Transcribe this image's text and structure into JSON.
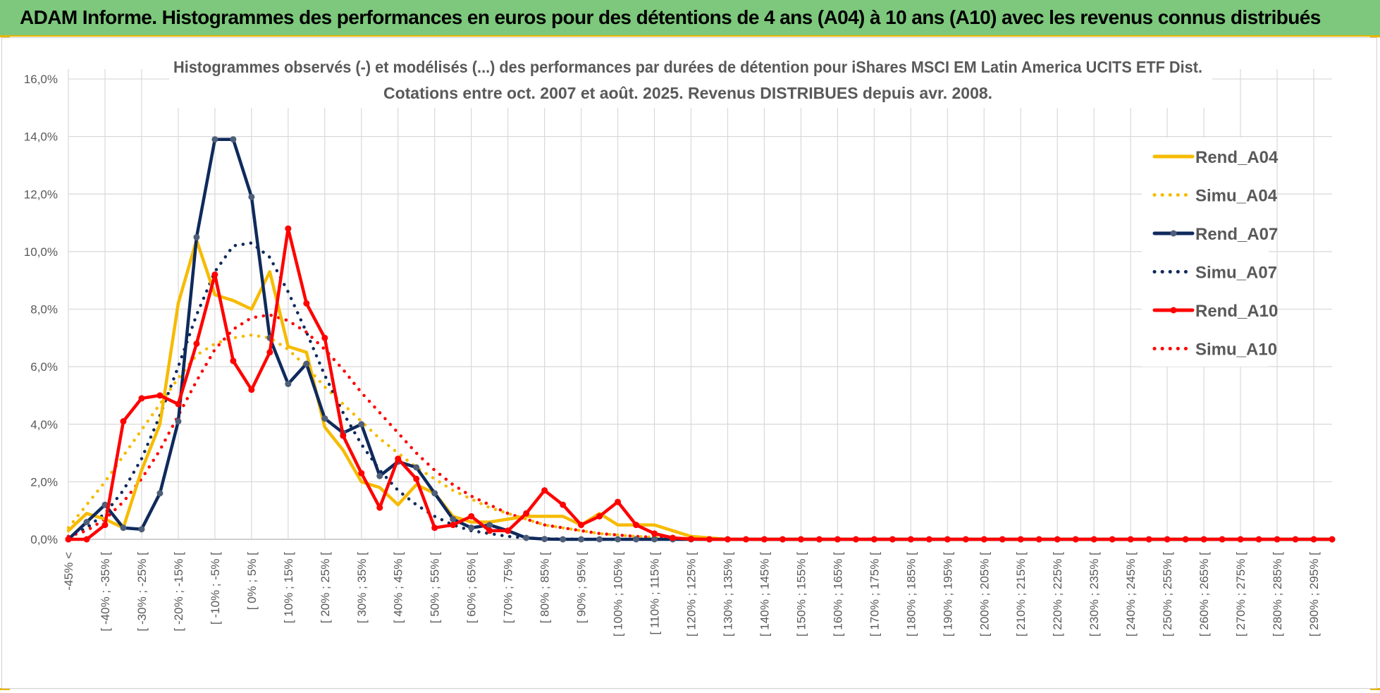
{
  "header": {
    "title": "ADAM Informe. Histogrammes des performances en euros pour des détentions de 4 ans (A04) à 10 ans (A10) avec les revenus connus distribués"
  },
  "colors": {
    "banner": "#7dc87c",
    "banner_border": "#e9b400",
    "A04": "#f6bb00",
    "A07": "#0f2a5c",
    "A10": "#ff0000",
    "A07_marker": "#4f5f7a",
    "A10_marker": "#ff0000",
    "grid": "#d9d9d9",
    "text": "#595959"
  },
  "chart_data": {
    "type": "line",
    "title_lines": [
      "Histogrammes observés (-) et modélisés (...) des performances par durées de détention pour iShares MSCI EM Latin America UCITS ETF Dist.",
      "Cotations entre oct. 2007 et août. 2025. Revenus DISTRIBUES depuis avr. 2008."
    ],
    "xlabel": "",
    "ylabel": "",
    "ylim": [
      0,
      0.16
    ],
    "yticks": [
      "0,0%",
      "2,0%",
      "4,0%",
      "6,0%",
      "8,0%",
      "10,0%",
      "12,0%",
      "14,0%",
      "16,0%"
    ],
    "grid": true,
    "legend_position": "top-right",
    "category_count": 70,
    "tick_labels": [
      "-45% <",
      "[ -40% ; -35% [",
      "[ -30% ; -25% [",
      "[ -20% ; -15% [",
      "[ -10% ; -5% [",
      "[ 0% ; 5% [",
      "[ 10% ; 15% [",
      "[ 20% ; 25% [",
      "[ 30% ; 35% [",
      "[ 40% ; 45% [",
      "[ 50% ; 55% [",
      "[ 60% ; 65% [",
      "[ 70% ; 75% [",
      "[ 80% ; 85% [",
      "[ 90% ; 95% [",
      "[ 100% ; 105% [",
      "[ 110% ; 115% [",
      "[ 120% ; 125% [",
      "[ 130% ; 135% [",
      "[ 140% ; 145% [",
      "[ 150% ; 155% [",
      "[ 160% ; 165% [",
      "[ 170% ; 175% [",
      "[ 180% ; 185% [",
      "[ 190% ; 195% [",
      "[ 200% ; 205% [",
      "[ 210% ; 215% [",
      "[ 220% ; 225% [",
      "[ 230% ; 235% [",
      "[ 240% ; 245% [",
      "[ 250% ; 255% [",
      "[ 260% ; 265% [",
      "[ 270% ; 275% [",
      "[ 280% ; 285% [",
      "[ 290% ; 295% ["
    ],
    "series": [
      {
        "name": "Rend_A04",
        "style": "solid",
        "color": "#f6bb00",
        "markers": false,
        "values": [
          0.003,
          0.009,
          0.007,
          0.004,
          0.024,
          0.04,
          0.082,
          0.104,
          0.085,
          0.083,
          0.08,
          0.093,
          0.067,
          0.065,
          0.039,
          0.031,
          0.02,
          0.018,
          0.012,
          0.019,
          0.016,
          0.008,
          0.006,
          0.006,
          0.007,
          0.008,
          0.008,
          0.008,
          0.005,
          0.009,
          0.005,
          0.005,
          0.005,
          0.003,
          0.001,
          0.0005,
          0.0,
          0.0
        ]
      },
      {
        "name": "Simu_A04",
        "style": "dotted",
        "color": "#f6bb00",
        "markers": false,
        "values": [
          0.004,
          0.012,
          0.02,
          0.029,
          0.038,
          0.047,
          0.056,
          0.064,
          0.068,
          0.07,
          0.071,
          0.07,
          0.066,
          0.06,
          0.053,
          0.047,
          0.041,
          0.035,
          0.03,
          0.025,
          0.021,
          0.017,
          0.014,
          0.011,
          0.009,
          0.007,
          0.005,
          0.004,
          0.003,
          0.002,
          0.0015,
          0.001,
          0.0007,
          0.0004,
          0.0002,
          0.0001,
          0.0,
          0.0
        ]
      },
      {
        "name": "Rend_A07",
        "style": "solid",
        "color": "#0f2a5c",
        "markers": true,
        "values": [
          0.0,
          0.006,
          0.012,
          0.004,
          0.0035,
          0.016,
          0.041,
          0.105,
          0.139,
          0.139,
          0.119,
          0.07,
          0.054,
          0.061,
          0.042,
          0.037,
          0.04,
          0.022,
          0.027,
          0.025,
          0.016,
          0.007,
          0.004,
          0.005,
          0.003,
          0.0005,
          0.0001,
          0.0,
          0.0,
          0.0,
          0.0,
          0.0,
          0.0,
          0.0,
          0.0,
          0.0,
          0.0,
          0.0
        ]
      },
      {
        "name": "Simu_A07",
        "style": "dotted",
        "color": "#0f2a5c",
        "markers": false,
        "values": [
          0.001,
          0.004,
          0.009,
          0.017,
          0.028,
          0.043,
          0.06,
          0.078,
          0.093,
          0.102,
          0.103,
          0.098,
          0.086,
          0.072,
          0.057,
          0.044,
          0.033,
          0.024,
          0.017,
          0.012,
          0.008,
          0.005,
          0.003,
          0.002,
          0.001,
          0.0005,
          0.0002,
          0.0001,
          0.0,
          0.0,
          0.0,
          0.0,
          0.0,
          0.0,
          0.0,
          0.0,
          0.0,
          0.0
        ]
      },
      {
        "name": "Rend_A10",
        "style": "solid",
        "color": "#ff0000",
        "markers": true,
        "values": [
          0.0,
          0.0,
          0.005,
          0.041,
          0.049,
          0.05,
          0.047,
          0.068,
          0.092,
          0.062,
          0.052,
          0.065,
          0.108,
          0.082,
          0.07,
          0.036,
          0.023,
          0.011,
          0.028,
          0.021,
          0.004,
          0.005,
          0.008,
          0.003,
          0.003,
          0.009,
          0.017,
          0.012,
          0.005,
          0.008,
          0.013,
          0.005,
          0.002,
          0.0005,
          0.0001,
          0.0,
          0.0,
          0.0,
          0.0,
          0.0,
          0.0,
          0.0,
          0.0,
          0.0,
          0.0,
          0.0,
          0.0,
          0.0,
          0.0,
          0.0,
          0.0,
          0.0,
          0.0,
          0.0,
          0.0,
          0.0,
          0.0,
          0.0,
          0.0,
          0.0,
          0.0,
          0.0,
          0.0,
          0.0,
          0.0,
          0.0,
          0.0,
          0.0,
          0.0,
          0.0
        ]
      },
      {
        "name": "Simu_A10",
        "style": "dotted",
        "color": "#ff0000",
        "markers": false,
        "values": [
          0.001,
          0.003,
          0.007,
          0.013,
          0.021,
          0.031,
          0.043,
          0.055,
          0.066,
          0.073,
          0.077,
          0.078,
          0.076,
          0.072,
          0.066,
          0.059,
          0.051,
          0.044,
          0.037,
          0.03,
          0.024,
          0.019,
          0.015,
          0.012,
          0.009,
          0.007,
          0.005,
          0.004,
          0.003,
          0.002,
          0.0015,
          0.001,
          0.0007,
          0.0004,
          0.0002,
          0.0001,
          0.0,
          0.0
        ]
      }
    ]
  }
}
